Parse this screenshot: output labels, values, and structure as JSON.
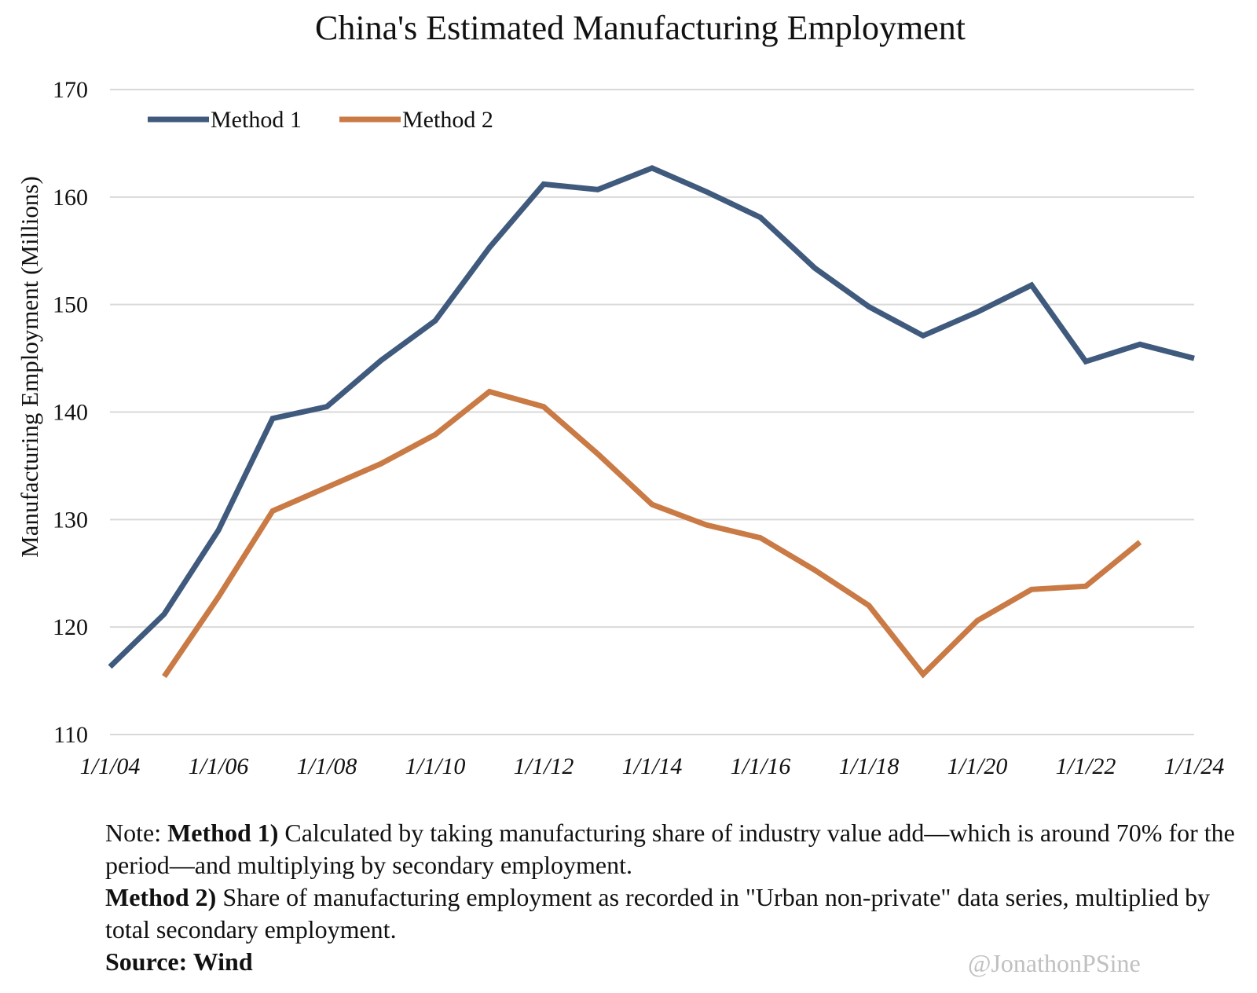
{
  "chart_data": {
    "type": "line",
    "title": "China's Estimated Manufacturing Employment",
    "xlabel": "",
    "ylabel": "Manufacturing Employment (Millions)",
    "ylim": [
      110,
      170
    ],
    "yticks": [
      "110",
      "120",
      "130",
      "140",
      "150",
      "160",
      "170"
    ],
    "xlim": [
      2004,
      2024
    ],
    "xticks": [
      {
        "x": 2004,
        "label": "1/1/04"
      },
      {
        "x": 2006,
        "label": "1/1/06"
      },
      {
        "x": 2008,
        "label": "1/1/08"
      },
      {
        "x": 2010,
        "label": "1/1/10"
      },
      {
        "x": 2012,
        "label": "1/1/12"
      },
      {
        "x": 2014,
        "label": "1/1/14"
      },
      {
        "x": 2016,
        "label": "1/1/16"
      },
      {
        "x": 2018,
        "label": "1/1/18"
      },
      {
        "x": 2020,
        "label": "1/1/20"
      },
      {
        "x": 2022,
        "label": "1/1/22"
      },
      {
        "x": 2024,
        "label": "1/1/24"
      }
    ],
    "grid": true,
    "legend_position": "top-left",
    "series": [
      {
        "name": "Method 1",
        "color": "#3f5a7d",
        "x": [
          2004,
          2005,
          2006,
          2007,
          2008,
          2009,
          2010,
          2011,
          2012,
          2013,
          2014,
          2015,
          2016,
          2017,
          2018,
          2019,
          2020,
          2021,
          2022,
          2023,
          2024
        ],
        "values": [
          116.3,
          121.2,
          129.0,
          139.4,
          140.5,
          144.8,
          148.5,
          155.3,
          161.2,
          160.7,
          162.7,
          160.5,
          158.1,
          153.4,
          149.8,
          147.1,
          149.3,
          151.8,
          144.7,
          146.3,
          145.0
        ]
      },
      {
        "name": "Method 2",
        "color": "#c97a45",
        "x": [
          2005,
          2006,
          2007,
          2008,
          2009,
          2010,
          2011,
          2012,
          2013,
          2014,
          2015,
          2016,
          2017,
          2018,
          2019,
          2020,
          2021,
          2022,
          2023
        ],
        "values": [
          115.4,
          122.8,
          130.8,
          133.0,
          135.2,
          137.9,
          141.9,
          140.5,
          136.1,
          131.4,
          129.5,
          128.3,
          125.3,
          122.0,
          115.6,
          120.6,
          123.5,
          123.8,
          127.9
        ]
      }
    ]
  },
  "notes": {
    "line1_prefix": "Note: ",
    "line1_bold": "Method 1)",
    "line1_text": " Calculated by taking manufacturing share of industry value add—which is around 70% for the period—and multiplying by secondary employment.",
    "line2_bold": "Method 2)",
    "line2_text": " Share of manufacturing employment as recorded in \"Urban non-private\" data series, multiplied by total secondary employment.",
    "source": "Source: Wind"
  },
  "watermark": "@JonathonPSine"
}
